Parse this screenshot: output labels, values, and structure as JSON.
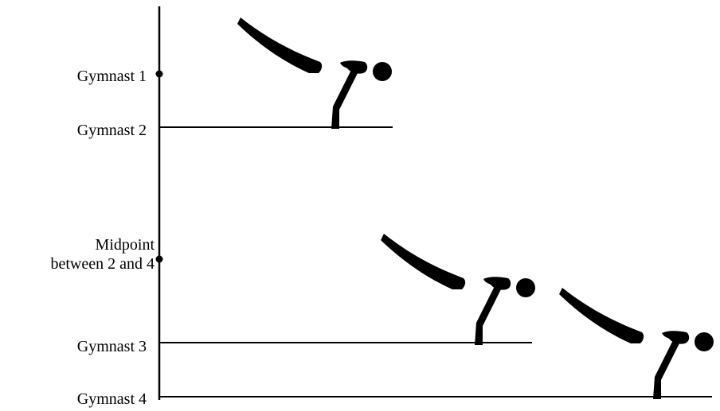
{
  "labels": {
    "gymnast_1": "Gymnast 1",
    "gymnast_2": "Gymnast 2",
    "midpoint_line_1": "Midpoint",
    "midpoint_line_2": "between 2 and 4",
    "gymnast_3": "Gymnast 3",
    "gymnast_4": "Gymnast 4"
  },
  "colors": {
    "ink": "#000000",
    "background": "#ffffff"
  }
}
